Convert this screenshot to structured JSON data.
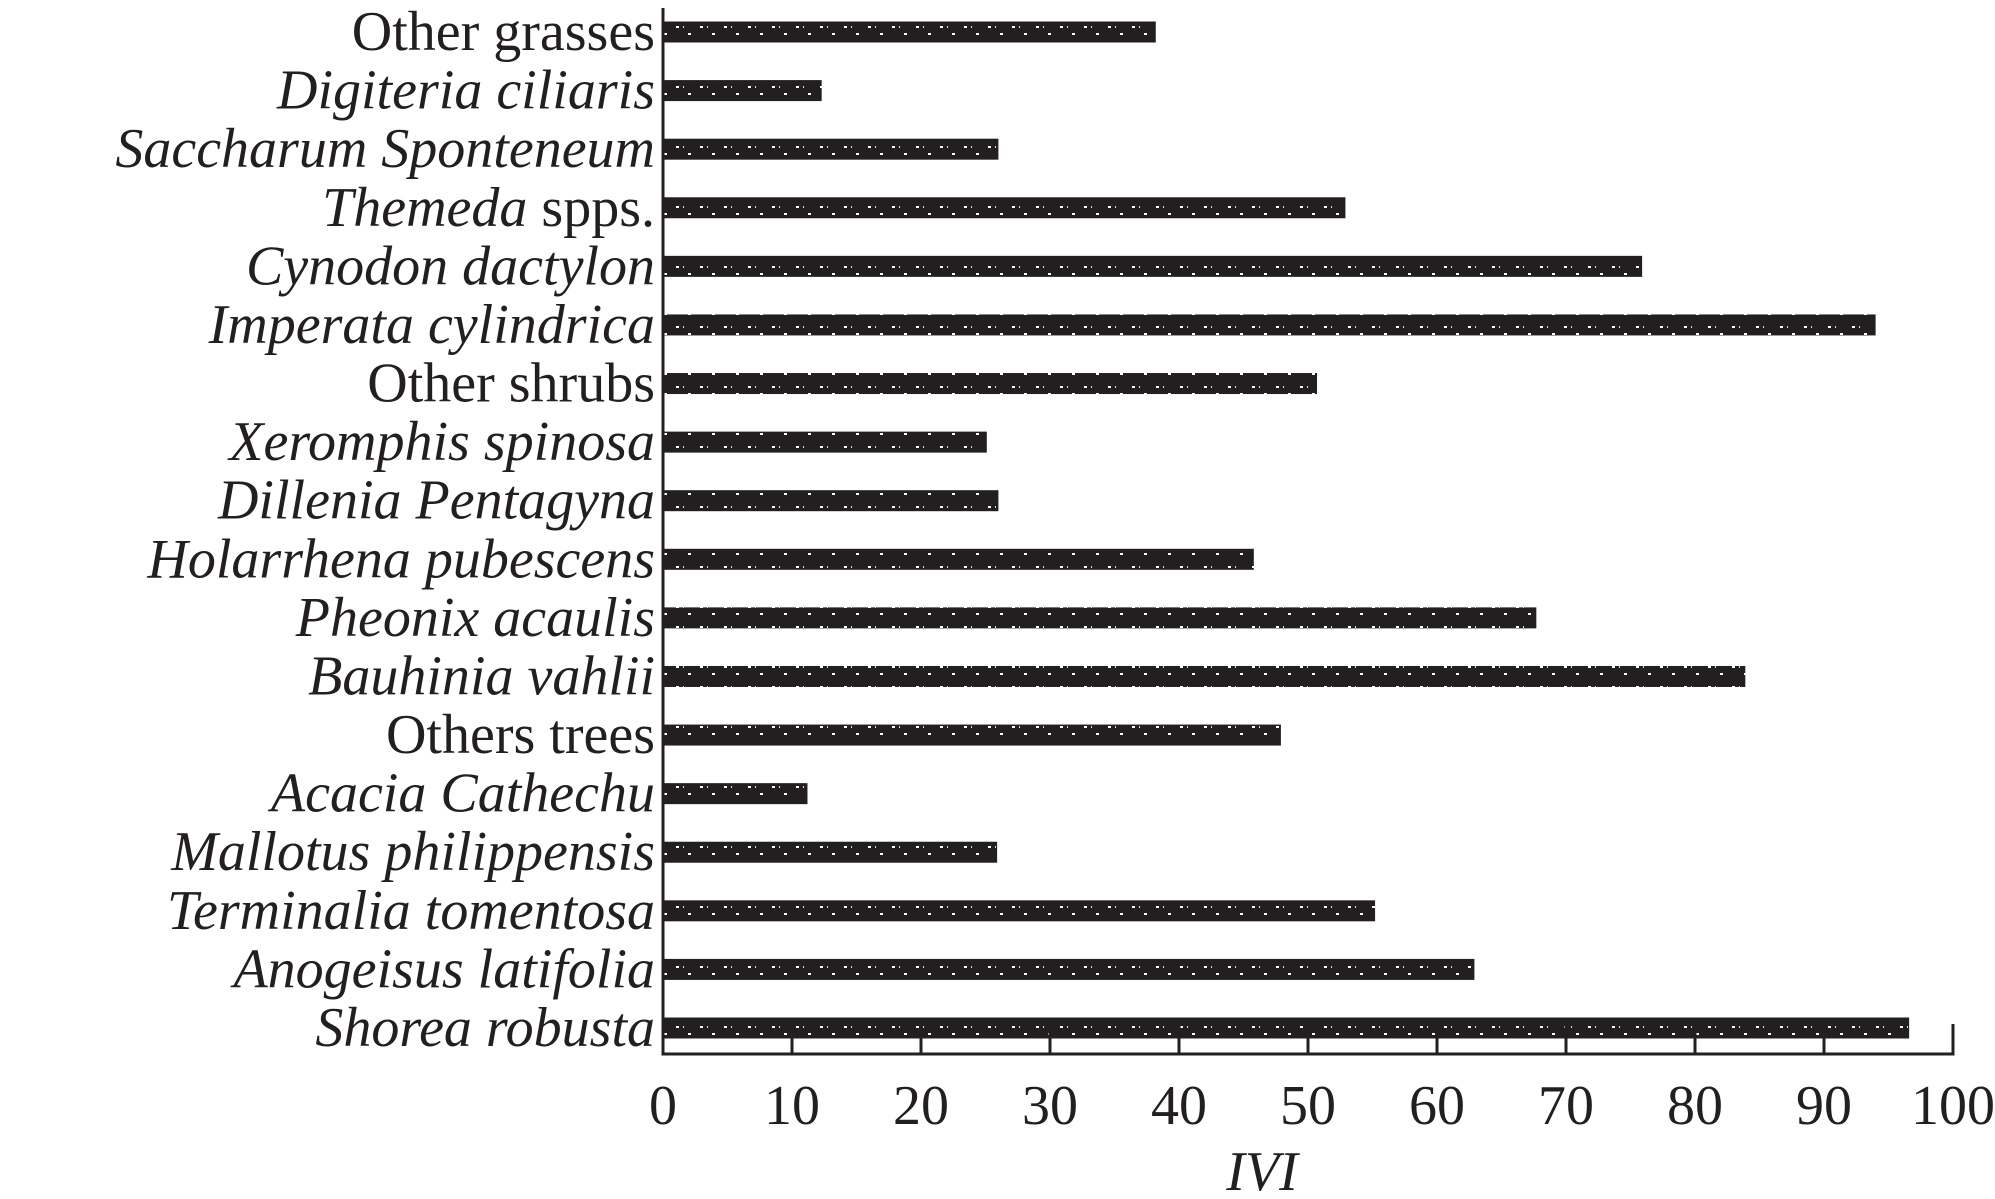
{
  "chart_data": {
    "type": "bar",
    "orientation": "horizontal",
    "title": "",
    "xlabel": "IVI",
    "ylabel": "",
    "xlim": [
      0,
      100
    ],
    "xticks": [
      0,
      10,
      20,
      30,
      40,
      50,
      60,
      70,
      80,
      90,
      100
    ],
    "grid": false,
    "bar_color": "#231f20",
    "bar_pattern": "dotted",
    "categories": [
      {
        "label": "Other grasses",
        "italic": false
      },
      {
        "label": "Digiteria ciliaris",
        "italic": true
      },
      {
        "label": "Saccharum Sponteneum",
        "italic": true
      },
      {
        "label": "Themeda spps.",
        "italic_part": "Themeda",
        "plain_part": " spps."
      },
      {
        "label": "Cynodon dactylon",
        "italic": true
      },
      {
        "label": "Imperata cylindrica",
        "italic": true
      },
      {
        "label": "Other shrubs",
        "italic": false
      },
      {
        "label": "Xeromphis spinosa",
        "italic": true
      },
      {
        "label": "Dillenia Pentagyna",
        "italic": true
      },
      {
        "label": "Holarrhena pubescens",
        "italic": true
      },
      {
        "label": "Pheonix acaulis",
        "italic": true
      },
      {
        "label": "Bauhinia vahlii",
        "italic": true
      },
      {
        "label": "Others trees",
        "italic": false
      },
      {
        "label": "Acacia Cathechu",
        "italic": true
      },
      {
        "label": "Mallotus philippensis",
        "italic": true
      },
      {
        "label": "Terminalia tomentosa",
        "italic": true
      },
      {
        "label": "Anogeisus latifolia",
        "italic": true
      },
      {
        "label": "Shorea robusta",
        "italic": true
      }
    ],
    "values": [
      38.2,
      12.3,
      26.0,
      52.9,
      75.9,
      94.0,
      50.7,
      25.1,
      26.0,
      45.8,
      67.7,
      83.9,
      47.9,
      11.2,
      25.9,
      55.2,
      62.9,
      96.6
    ]
  }
}
